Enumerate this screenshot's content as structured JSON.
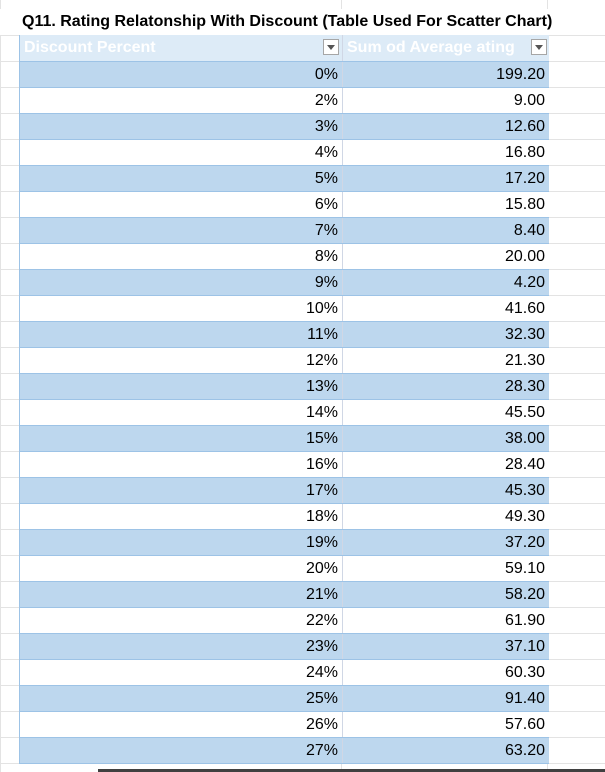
{
  "title": "Q11. Rating Relatonship With Discount (Table Used For Scatter Chart)",
  "table": {
    "headers": [
      "Discount Percent",
      "Sum od Average ating"
    ],
    "rows": [
      [
        "0%",
        "199.20"
      ],
      [
        "2%",
        "9.00"
      ],
      [
        "3%",
        "12.60"
      ],
      [
        "4%",
        "16.80"
      ],
      [
        "5%",
        "17.20"
      ],
      [
        "6%",
        "15.80"
      ],
      [
        "7%",
        "8.40"
      ],
      [
        "8%",
        "20.00"
      ],
      [
        "9%",
        "4.20"
      ],
      [
        "10%",
        "41.60"
      ],
      [
        "11%",
        "32.30"
      ],
      [
        "12%",
        "21.30"
      ],
      [
        "13%",
        "28.30"
      ],
      [
        "14%",
        "45.50"
      ],
      [
        "15%",
        "38.00"
      ],
      [
        "16%",
        "28.40"
      ],
      [
        "17%",
        "45.30"
      ],
      [
        "18%",
        "49.30"
      ],
      [
        "19%",
        "37.20"
      ],
      [
        "20%",
        "59.10"
      ],
      [
        "21%",
        "58.20"
      ],
      [
        "22%",
        "61.90"
      ],
      [
        "23%",
        "37.10"
      ],
      [
        "24%",
        "60.30"
      ],
      [
        "25%",
        "91.40"
      ],
      [
        "26%",
        "57.60"
      ],
      [
        "27%",
        "63.20"
      ]
    ]
  },
  "colors": {
    "header_bg": "#ddebf7",
    "band_bg": "#bdd7ee",
    "border": "#9dc3e6"
  },
  "icons": {
    "filter": "filter-dropdown-icon"
  }
}
